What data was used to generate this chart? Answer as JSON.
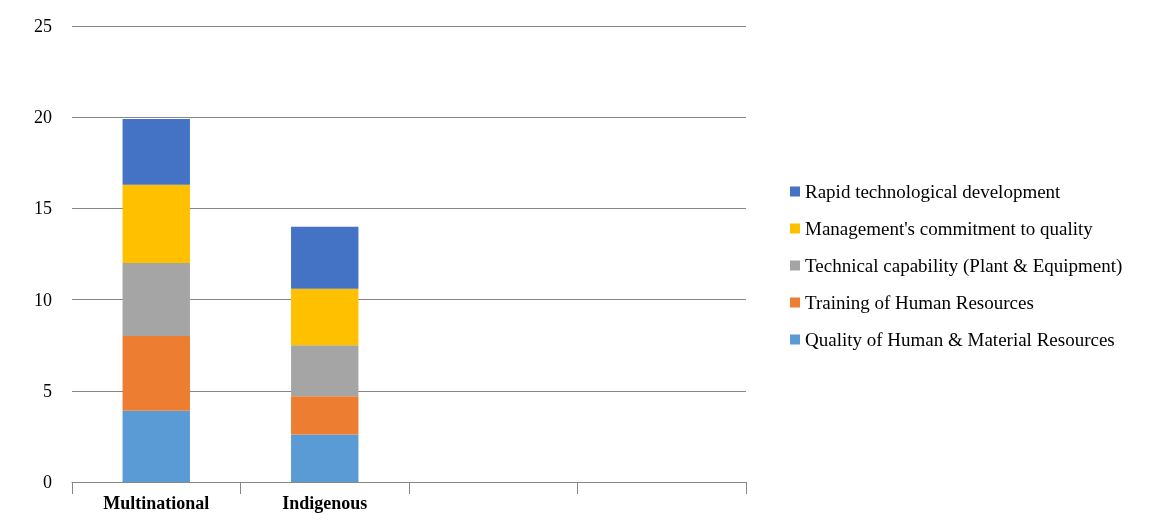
{
  "chart_data": {
    "type": "bar",
    "stacked": true,
    "categories": [
      "Multinational",
      "Indigenous",
      null,
      null
    ],
    "series": [
      {
        "name": "Quality of Human & Material Resources",
        "color": "#5b9bd5",
        "values": [
          3.9,
          2.6,
          null,
          null
        ]
      },
      {
        "name": "Training of Human Resources",
        "color": "#ed7d31",
        "values": [
          4.1,
          2.1,
          null,
          null
        ]
      },
      {
        "name": "Technical capability (Plant & Equipment)",
        "color": "#a5a5a5",
        "values": [
          4.0,
          2.8,
          null,
          null
        ]
      },
      {
        "name": "Management's commitment to quality",
        "color": "#ffc000",
        "values": [
          4.3,
          3.1,
          null,
          null
        ]
      },
      {
        "name": "Rapid technological development",
        "color": "#4472c4",
        "values": [
          3.6,
          3.4,
          null,
          null
        ]
      }
    ],
    "ylim": [
      0,
      25
    ],
    "yticks": [
      0,
      5,
      10,
      15,
      20,
      25
    ],
    "grid": "y",
    "legend": "right"
  }
}
